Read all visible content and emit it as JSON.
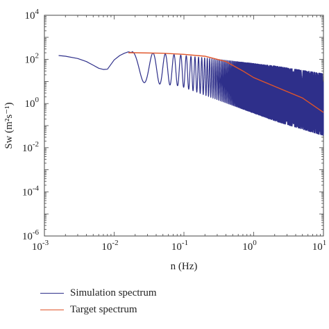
{
  "chart_data": {
    "type": "line",
    "title": "",
    "xlabel": "n (Hz)",
    "ylabel": "Sw (m²s⁻¹)",
    "x_scale": "log",
    "y_scale": "log",
    "xlim": [
      0.001,
      10
    ],
    "ylim": [
      1e-06,
      10000
    ],
    "x_ticks": [
      {
        "base": "10",
        "exp": "-3"
      },
      {
        "base": "10",
        "exp": "-2"
      },
      {
        "base": "10",
        "exp": "-1"
      },
      {
        "base": "10",
        "exp": "0"
      },
      {
        "base": "10",
        "exp": "1"
      }
    ],
    "y_ticks": [
      {
        "base": "10",
        "exp": "-6"
      },
      {
        "base": "10",
        "exp": "-4"
      },
      {
        "base": "10",
        "exp": "-2"
      },
      {
        "base": "10",
        "exp": "0"
      },
      {
        "base": "10",
        "exp": "2"
      },
      {
        "base": "10",
        "exp": "4"
      }
    ],
    "grid": false,
    "legend_position": "bottom-left",
    "series": [
      {
        "name": "Simulation spectrum",
        "color": "#2e2f8a",
        "points": [
          [
            0.0016,
            150
          ],
          [
            0.002,
            140
          ],
          [
            0.003,
            110
          ],
          [
            0.004,
            80
          ],
          [
            0.005,
            55
          ],
          [
            0.006,
            40
          ],
          [
            0.007,
            35
          ],
          [
            0.008,
            36
          ],
          [
            0.009,
            60
          ],
          [
            0.01,
            95
          ],
          [
            0.012,
            150
          ],
          [
            0.014,
            190
          ],
          [
            0.016,
            220
          ],
          [
            0.018,
            200
          ]
        ],
        "oscillation": {
          "x_start": 0.018,
          "x_end": 10,
          "upper_envelope_log10": [
            2.35,
            2.2,
            1.95,
            1.7,
            1.35
          ],
          "lower_envelope_log10": [
            1.0,
            0.8,
            0.0,
            -0.8,
            -1.45
          ]
        }
      },
      {
        "name": "Target spectrum",
        "color": "#e0552a",
        "points": [
          [
            0.016,
            200
          ],
          [
            0.02,
            200
          ],
          [
            0.05,
            190
          ],
          [
            0.1,
            170
          ],
          [
            0.2,
            140
          ],
          [
            0.4,
            80
          ],
          [
            0.7,
            30
          ],
          [
            1,
            15
          ],
          [
            2,
            6
          ],
          [
            5,
            1.8
          ],
          [
            10,
            0.4
          ]
        ]
      }
    ]
  },
  "legend": {
    "items": [
      {
        "label": "Simulation spectrum",
        "color": "#2e2f8a"
      },
      {
        "label": "Target spectrum",
        "color": "#e0552a"
      }
    ]
  }
}
